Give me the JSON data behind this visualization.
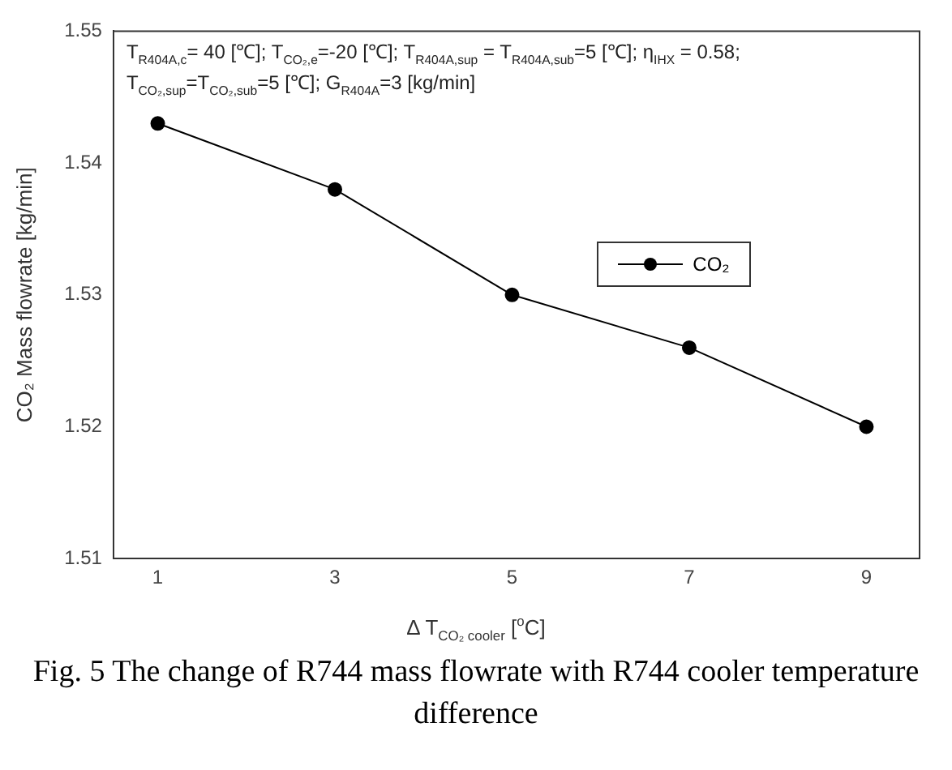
{
  "chart_data": {
    "type": "line",
    "xlabel": "Δ T$_{CO₂ cooler}$ [$^{o}$C]",
    "ylabel": "CO₂ Mass flowrate [kg/min]",
    "x": [
      1,
      3,
      5,
      7,
      9
    ],
    "series": [
      {
        "name": "CO₂",
        "color": "#000000",
        "values": [
          1.543,
          1.538,
          1.53,
          1.526,
          1.52
        ]
      }
    ],
    "xlim": [
      0.5,
      9.6
    ],
    "xticks": [
      1,
      3,
      5,
      7,
      9
    ],
    "ylim": [
      1.51,
      1.55
    ],
    "yticks": [
      1.51,
      1.52,
      1.53,
      1.54,
      1.55
    ],
    "grid": false,
    "legend": "top right",
    "marker": "circle",
    "line_style": "solid",
    "annotations": [
      "T$_{R404A,c}$= 40 [℃]; T$_{CO₂,e}$=-20 [℃]; T$_{R404A,sup}$ = T$_{R404A,sub}$=5 [℃]; η$_{IHX}$ = 0.58;",
      "T$_{CO₂,sup}$=T$_{CO₂,sub}$=5 [℃]; G$_{R404A}$=3 [kg/min]",
      "Fig. 5  The change of R744 mass flowrate with R744 cooler temperature difference"
    ]
  }
}
